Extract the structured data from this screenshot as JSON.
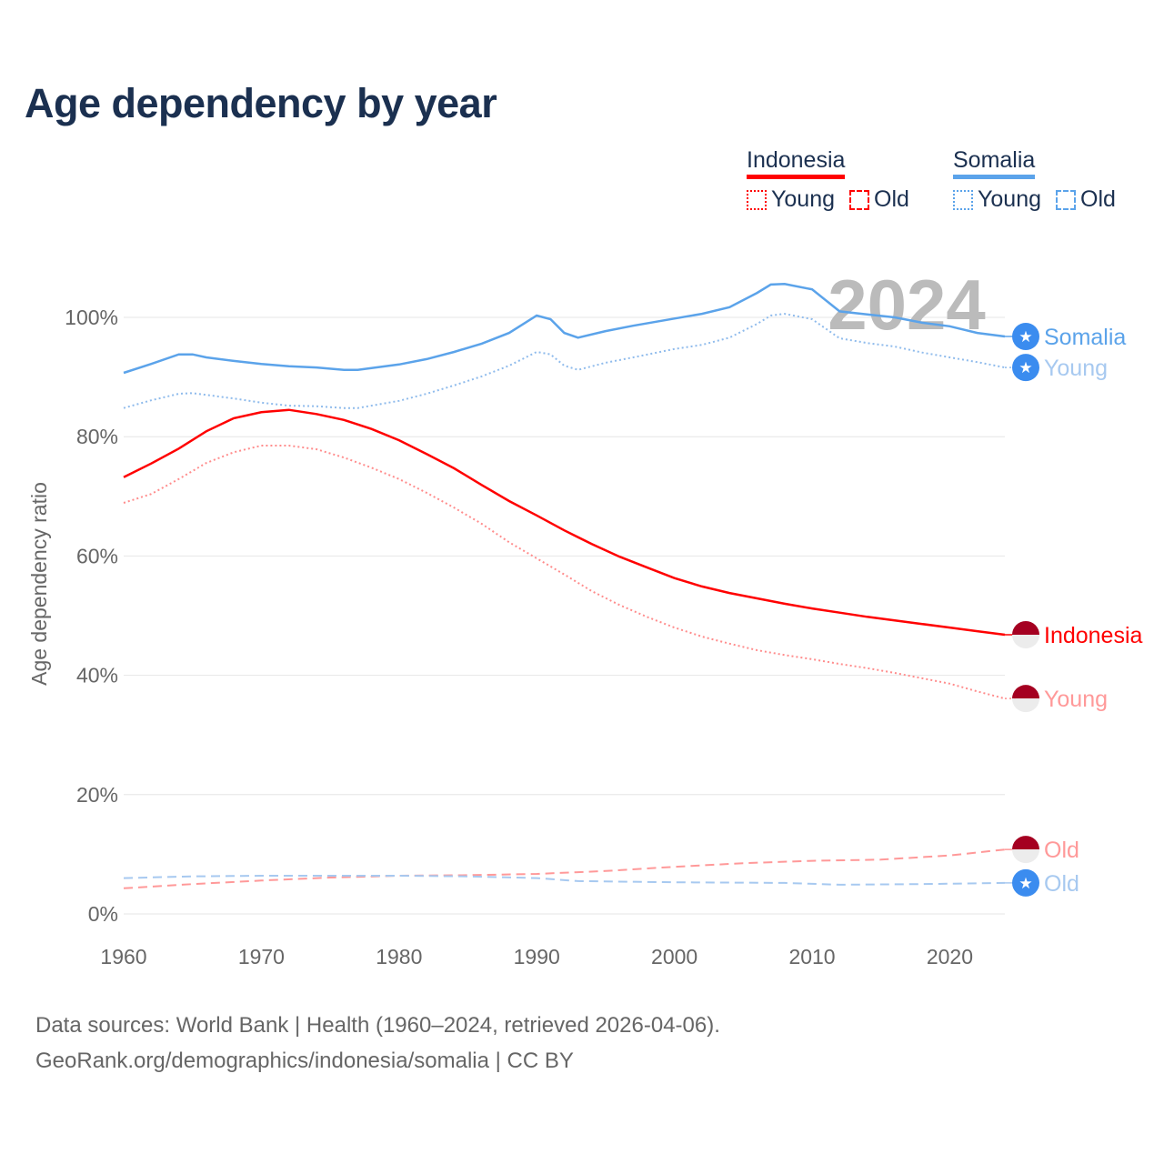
{
  "title": "Age dependency by year",
  "legend": {
    "groups": [
      {
        "name": "Indonesia",
        "color": "#ff0000",
        "items": [
          {
            "label": "Young",
            "style": "dotted"
          },
          {
            "label": "Old",
            "style": "dashed"
          }
        ]
      },
      {
        "name": "Somalia",
        "color": "#5ba3ea",
        "items": [
          {
            "label": "Young",
            "style": "dotted"
          },
          {
            "label": "Old",
            "style": "dashed"
          }
        ]
      }
    ]
  },
  "year_watermark": "2024",
  "footer": {
    "line1": "Data sources: World Bank | Health (1960–2024, retrieved 2026-04-06).",
    "line2": "GeoRank.org/demographics/indonesia/somalia | CC BY"
  },
  "chart_data": {
    "type": "line",
    "title": "Age dependency by year",
    "xlabel": "",
    "ylabel": "Age dependency ratio",
    "xlim": [
      1960,
      2024
    ],
    "ylim": [
      0,
      100
    ],
    "xticks": [
      "1960",
      "1970",
      "1980",
      "1990",
      "2000",
      "2010",
      "2020"
    ],
    "yticks": [
      "0%",
      "20%",
      "40%",
      "60%",
      "80%",
      "100%"
    ],
    "grid": true,
    "legend_position": "top-right",
    "series": [
      {
        "name": "Somalia",
        "end_label": "Somalia",
        "country": "Somalia",
        "color": "#5ba3ea",
        "dash": "solid",
        "x": [
          1960,
          1962,
          1964,
          1965,
          1966,
          1968,
          1970,
          1972,
          1974,
          1976,
          1977,
          1980,
          1982,
          1984,
          1986,
          1988,
          1990,
          1991,
          1992,
          1993,
          1995,
          1997,
          2000,
          2002,
          2004,
          2006,
          2007,
          2008,
          2010,
          2012,
          2014,
          2016,
          2018,
          2020,
          2022,
          2024
        ],
        "y": [
          90.7,
          92.2,
          93.8,
          93.8,
          93.3,
          92.7,
          92.2,
          91.8,
          91.6,
          91.2,
          91.2,
          92.1,
          93.0,
          94.2,
          95.6,
          97.4,
          100.3,
          99.7,
          97.4,
          96.6,
          97.7,
          98.6,
          99.8,
          100.6,
          101.7,
          104.1,
          105.5,
          105.6,
          104.7,
          101.0,
          100.5,
          100.0,
          99.1,
          98.5,
          97.4,
          96.8
        ]
      },
      {
        "name": "Somalia Young",
        "end_label": "Young",
        "country": "Somalia",
        "color": "#a7c9f0",
        "line_color": "#8fbbec",
        "dash": "dotted",
        "x": [
          1960,
          1962,
          1964,
          1965,
          1968,
          1970,
          1972,
          1974,
          1976,
          1977,
          1980,
          1982,
          1984,
          1986,
          1988,
          1990,
          1991,
          1992,
          1993,
          1995,
          1997,
          2000,
          2002,
          2004,
          2006,
          2007,
          2008,
          2010,
          2012,
          2014,
          2016,
          2018,
          2020,
          2022,
          2024
        ],
        "y": [
          84.8,
          86.1,
          87.2,
          87.3,
          86.4,
          85.7,
          85.2,
          85.1,
          84.8,
          84.8,
          86.0,
          87.2,
          88.6,
          90.1,
          91.9,
          94.2,
          93.8,
          91.9,
          91.2,
          92.4,
          93.3,
          94.7,
          95.4,
          96.6,
          98.9,
          100.3,
          100.6,
          99.7,
          96.5,
          95.7,
          95.1,
          94.1,
          93.3,
          92.5,
          91.6
        ]
      },
      {
        "name": "Indonesia",
        "end_label": "Indonesia",
        "country": "Indonesia",
        "color": "#ff0000",
        "dash": "solid",
        "x": [
          1960,
          1962,
          1964,
          1966,
          1968,
          1970,
          1972,
          1974,
          1976,
          1978,
          1980,
          1982,
          1984,
          1986,
          1988,
          1990,
          1992,
          1994,
          1996,
          1998,
          2000,
          2002,
          2004,
          2006,
          2008,
          2010,
          2012,
          2014,
          2016,
          2018,
          2020,
          2022,
          2024
        ],
        "y": [
          73.2,
          75.5,
          78.0,
          80.9,
          83.1,
          84.1,
          84.5,
          83.8,
          82.8,
          81.3,
          79.4,
          77.1,
          74.7,
          71.9,
          69.2,
          66.8,
          64.3,
          62.0,
          59.9,
          58.1,
          56.3,
          54.9,
          53.8,
          52.9,
          52.0,
          51.2,
          50.5,
          49.8,
          49.2,
          48.6,
          48.0,
          47.4,
          46.8
        ]
      },
      {
        "name": "Indonesia Young",
        "end_label": "Young",
        "country": "Indonesia",
        "color": "#ff9999",
        "line_color": "#ff8c8c",
        "dash": "dotted",
        "x": [
          1960,
          1962,
          1964,
          1966,
          1968,
          1970,
          1972,
          1974,
          1976,
          1978,
          1980,
          1982,
          1984,
          1986,
          1988,
          1990,
          1992,
          1994,
          1996,
          1998,
          2000,
          2002,
          2004,
          2006,
          2008,
          2010,
          2012,
          2014,
          2016,
          2018,
          2020,
          2022,
          2024
        ],
        "y": [
          68.9,
          70.4,
          72.9,
          75.6,
          77.4,
          78.5,
          78.5,
          77.9,
          76.5,
          74.8,
          72.9,
          70.6,
          68.1,
          65.4,
          62.3,
          59.6,
          56.9,
          54.1,
          51.8,
          49.8,
          48.0,
          46.5,
          45.3,
          44.2,
          43.4,
          42.7,
          41.9,
          41.2,
          40.4,
          39.5,
          38.6,
          37.3,
          36.1
        ]
      },
      {
        "name": "Indonesia Old",
        "end_label": "Old",
        "country": "Indonesia",
        "color": "#ff9999",
        "line_color": "#ff9999",
        "dash": "dashed",
        "x": [
          1960,
          1965,
          1970,
          1975,
          1980,
          1985,
          1990,
          1995,
          2000,
          2005,
          2010,
          2015,
          2020,
          2024
        ],
        "y": [
          4.3,
          5.0,
          5.6,
          6.1,
          6.4,
          6.5,
          6.7,
          7.2,
          7.9,
          8.5,
          8.9,
          9.1,
          9.8,
          10.8
        ]
      },
      {
        "name": "Somalia Old",
        "end_label": "Old",
        "country": "Somalia",
        "color": "#a7c9f0",
        "line_color": "#a7c9f0",
        "dash": "dashed",
        "x": [
          1960,
          1965,
          1970,
          1975,
          1980,
          1985,
          1990,
          1993,
          2000,
          2008,
          2012,
          2018,
          2024
        ],
        "y": [
          6.0,
          6.3,
          6.4,
          6.4,
          6.4,
          6.3,
          6.0,
          5.5,
          5.3,
          5.2,
          4.9,
          5.0,
          5.2
        ]
      }
    ]
  }
}
